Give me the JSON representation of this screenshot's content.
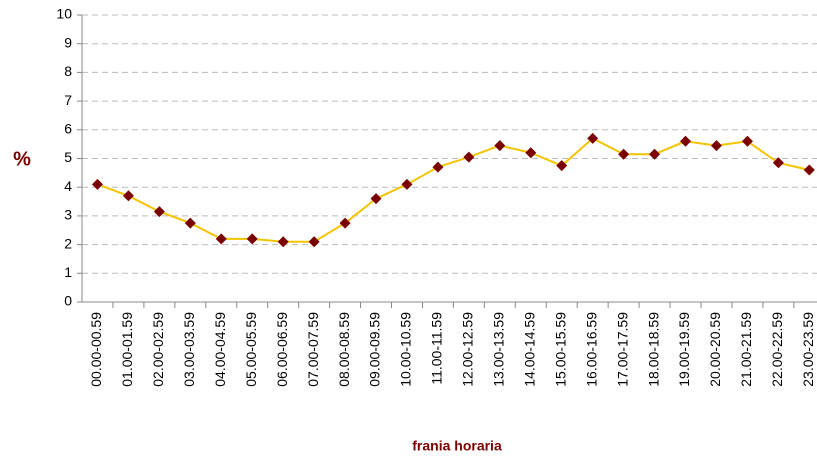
{
  "chart_data": {
    "type": "line",
    "y_label": "%",
    "x_label": "frania horaria",
    "categories": [
      "00.00-00.59",
      "01.00-01.59",
      "02.00-02.59",
      "03.00-03.59",
      "04.00-04.59",
      "05.00-05.59",
      "06.00-06.59",
      "07.00-07.59",
      "08.00-08.59",
      "09.00-09.59",
      "10.00-10.59",
      "11.00-11.59",
      "12.00-12.59",
      "13.00-13.59",
      "14.00-14.59",
      "15.00-15.59",
      "16.00-16.59",
      "17.00-17.59",
      "18.00-18.59",
      "19.00-19.59",
      "20.00-20.59",
      "21.00-21.59",
      "22.00-22.59",
      "23.00-23.59"
    ],
    "values": [
      4.1,
      3.7,
      3.15,
      2.75,
      2.2,
      2.2,
      2.1,
      2.1,
      2.75,
      3.6,
      4.1,
      4.7,
      5.05,
      5.45,
      5.2,
      4.75,
      5.7,
      5.15,
      5.15,
      5.6,
      5.45,
      5.6,
      4.85,
      4.6
    ],
    "color": "#f5c400",
    "marker_color": "#7a0000",
    "ylim": [
      0,
      10
    ],
    "yticks": [
      0,
      1,
      2,
      3,
      4,
      5,
      6,
      7,
      8,
      9,
      10
    ],
    "grid": true
  }
}
